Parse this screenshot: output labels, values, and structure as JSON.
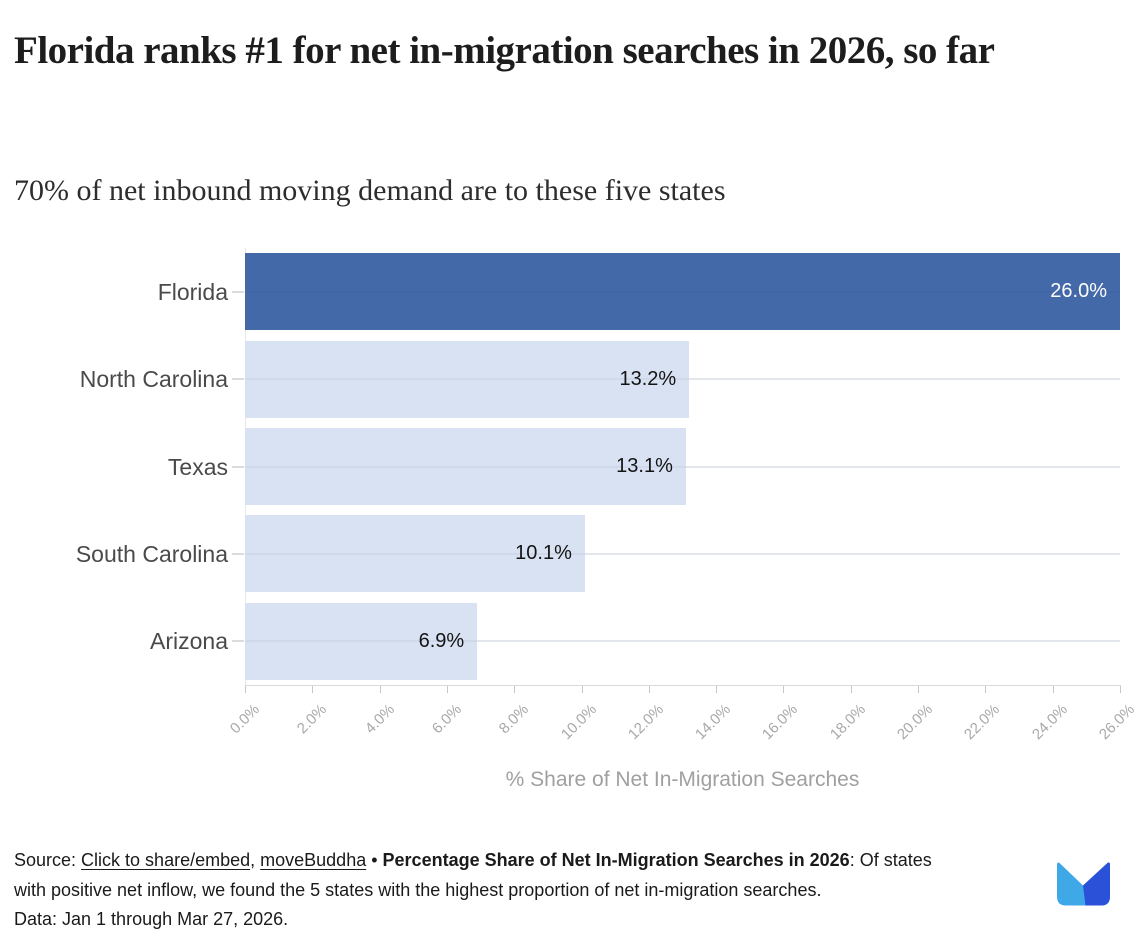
{
  "header": {
    "title": "Florida ranks #1 for net in-migration searches in 2026, so far",
    "subtitle": "70% of net inbound moving demand are to these five states"
  },
  "chart_data": {
    "type": "bar",
    "orientation": "horizontal",
    "title": "Florida ranks #1 for net in-migration searches in 2026, so far",
    "subtitle": "70% of net inbound moving demand are to these five states",
    "categories": [
      "Florida",
      "North Carolina",
      "Texas",
      "South Carolina",
      "Arizona"
    ],
    "values": [
      26.0,
      13.2,
      13.1,
      10.1,
      6.9
    ],
    "value_labels": [
      "26.0%",
      "13.2%",
      "13.1%",
      "10.1%",
      "6.9%"
    ],
    "xlabel": "% Share of Net In-Migration Searches",
    "xlim": [
      0,
      26
    ],
    "x_tick_step": 2,
    "x_tick_labels": [
      "0.0%",
      "2.0%",
      "4.0%",
      "6.0%",
      "8.0%",
      "10.0%",
      "12.0%",
      "14.0%",
      "16.0%",
      "18.0%",
      "20.0%",
      "22.0%",
      "24.0%",
      "26.0%"
    ],
    "grid": "horizontal category gridlines only",
    "legend": "none",
    "highlight_color": "#4469a9",
    "base_bar_color": "#d8e2f2",
    "bar_colors": [
      "#4469a9",
      "#d8e2f2",
      "#d8e2f2",
      "#d8e2f2",
      "#d8e2f2"
    ],
    "value_label_colors": [
      "#ffffff",
      "#141414",
      "#141414",
      "#141414",
      "#141414"
    ]
  },
  "footer": {
    "source_prefix": "Source: ",
    "share_link": "Click to share/embed",
    "comma": ", ",
    "brand_link": "moveBuddha",
    "separator": " • ",
    "bold_title": "Percentage Share of Net In-Migration Searches in 2026",
    "line1_rest": ": Of states",
    "line2": "with positive net inflow, we found the 5 states with the highest proportion of net in-migration searches.",
    "line3": "Data: Jan 1 through Mar 27, 2026.",
    "logo_colors": {
      "light": "#3FA9E8",
      "dark": "#2B51D8"
    }
  }
}
